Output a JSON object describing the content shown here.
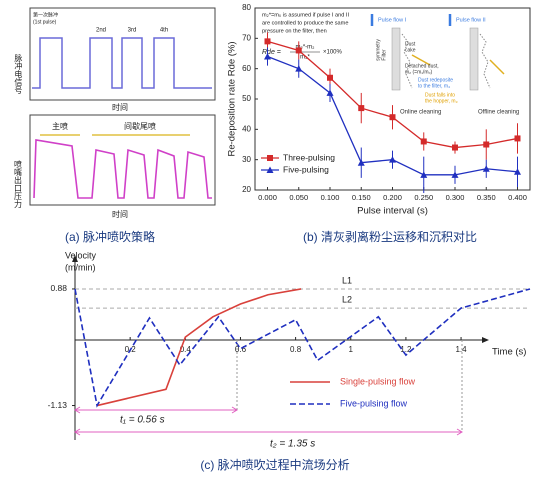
{
  "panel_a": {
    "top_ylabel": "脉冲电信号",
    "top_xlabel": "时间",
    "pulse_labels": [
      "第一次脉冲",
      "(1st pulse)",
      "2nd",
      "3rd",
      "4th"
    ],
    "bottom_ylabel": "喷嘴出口压力",
    "bottom_xlabel": "时间",
    "phase_labels": [
      "主喷",
      "间歇尾喷"
    ]
  },
  "captions": [
    "(a) 脉冲喷吹策略",
    "(b) 清灰剥离粉尘运移和沉积对比",
    "(c) 脉冲喷吹过程中流场分析"
  ],
  "chart_data": [
    {
      "type": "errorbar-line",
      "xlabel": "Pulse interval (s)",
      "ylabel": "Re-deposition rate Rde (%)",
      "x": [
        0,
        0.05,
        0.1,
        0.15,
        0.2,
        0.25,
        0.3,
        0.35,
        0.4
      ],
      "xlim": [
        -0.02,
        0.42
      ],
      "xticks": [
        {
          "value": 0,
          "label": "0.000"
        },
        {
          "value": 0.05,
          "label": "0.050"
        },
        {
          "value": 0.1,
          "label": "0.100"
        },
        {
          "value": 0.15,
          "label": "0.150"
        },
        {
          "value": 0.2,
          "label": "0.200"
        },
        {
          "value": 0.25,
          "label": "0.250"
        },
        {
          "value": 0.3,
          "label": "0.300"
        },
        {
          "value": 0.35,
          "label": "0.350"
        },
        {
          "value": 0.4,
          "label": "0.400"
        }
      ],
      "ylim": [
        20,
        80
      ],
      "yticks": [
        20,
        30,
        40,
        50,
        60,
        70,
        80
      ],
      "legend": "lower left",
      "series": [
        {
          "name": "Three-pulsing",
          "color": "#d42a2a",
          "marker": "square",
          "values": [
            69,
            66,
            57,
            47,
            44,
            36,
            34,
            35,
            37
          ],
          "errors": [
            3,
            3,
            3,
            5,
            4,
            3,
            2,
            5,
            5
          ]
        },
        {
          "name": "Five-pulsing",
          "color": "#2030c0",
          "marker": "triangle",
          "values": [
            64,
            60,
            52,
            29,
            30,
            25,
            25,
            27,
            26
          ],
          "errors": [
            3,
            3,
            3,
            5,
            3,
            6,
            3,
            3,
            5
          ]
        }
      ],
      "annotations": [
        "m₂*=m₀ is assumed if pulse I and II",
        "are controlled to produce the same",
        "pressure on the filter, then",
        "Rde =",
        "m₂*-m₂",
        "m₂*",
        "×100%",
        "Pulse flow I",
        "Pulse flow II",
        "Filter",
        "symmetry",
        "Dust",
        "cake",
        "Detached dust,",
        "m₂ (=m₁/m₀)",
        "Dust redeposite",
        "to the filter, m₄",
        "Dust falls into",
        "the hopper, m₃",
        "Online cleaning",
        "Offline cleaning"
      ]
    },
    {
      "type": "line",
      "xlabel": "Time (s)",
      "ylabel": "Velocity",
      "yunit": "(m/min)",
      "xlim": [
        0,
        1.65
      ],
      "xticks": [
        0.2,
        0.4,
        0.6,
        0.8,
        1,
        1.2,
        1.4
      ],
      "ylim": [
        -1.5,
        1.3
      ],
      "yticks": [
        0.88,
        -1.13
      ],
      "reference_lines": [
        {
          "label": "L1",
          "value": 0.88
        },
        {
          "label": "L2",
          "value": 0.55
        }
      ],
      "series": [
        {
          "name": "Single-pulsing flow",
          "color": "#d9413b",
          "dash": false,
          "x": [
            0.08,
            0.33,
            0.4,
            0.5,
            0.6,
            0.7,
            0.82
          ],
          "values": [
            -1.13,
            -0.85,
            0.05,
            0.4,
            0.62,
            0.78,
            0.88
          ]
        },
        {
          "name": "Five-pulsing flow",
          "color": "#1f2fbf",
          "dash": true,
          "x": [
            0,
            0.08,
            0.27,
            0.38,
            0.52,
            0.6,
            0.8,
            0.88,
            1.1,
            1.2,
            1.4,
            1.65
          ],
          "values": [
            0.88,
            -1.13,
            0.38,
            -0.43,
            0.4,
            -0.15,
            0.35,
            -0.35,
            0.4,
            -0.26,
            0.55,
            0.88
          ]
        }
      ],
      "annotations": [
        "t₁ = 0.56 s",
        "t₂ = 1.35 s"
      ]
    }
  ]
}
